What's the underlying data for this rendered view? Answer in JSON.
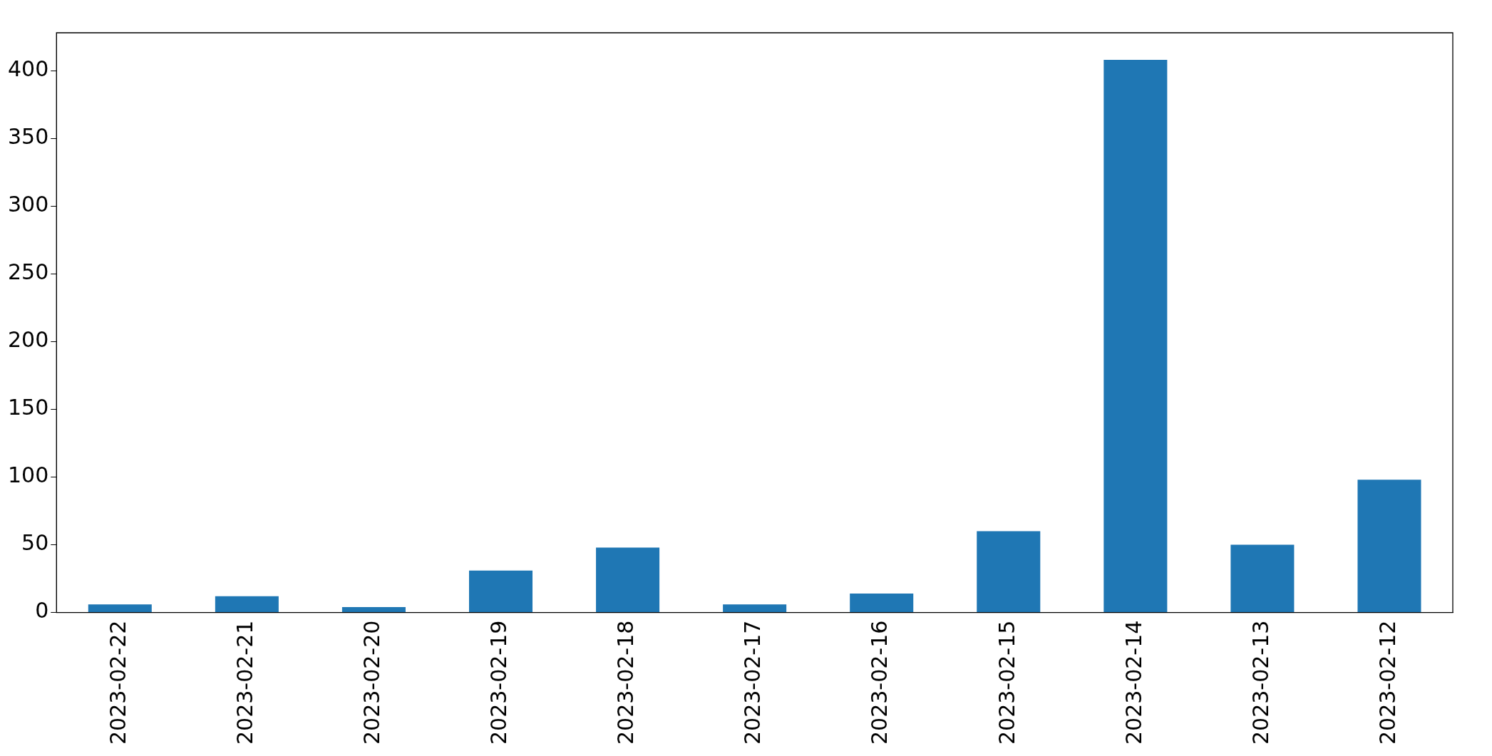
{
  "chart_data": {
    "type": "bar",
    "categories": [
      "2023-02-22",
      "2023-02-21",
      "2023-02-20",
      "2023-02-19",
      "2023-02-18",
      "2023-02-17",
      "2023-02-16",
      "2023-02-15",
      "2023-02-14",
      "2023-02-13",
      "2023-02-12"
    ],
    "values": [
      6,
      12,
      4,
      31,
      48,
      6,
      14,
      60,
      408,
      50,
      98
    ],
    "color": "#1f77b4",
    "ylim": [
      0,
      428
    ],
    "yticks": [
      0,
      50,
      100,
      150,
      200,
      250,
      300,
      350,
      400
    ],
    "grid": false,
    "legend": false
  }
}
